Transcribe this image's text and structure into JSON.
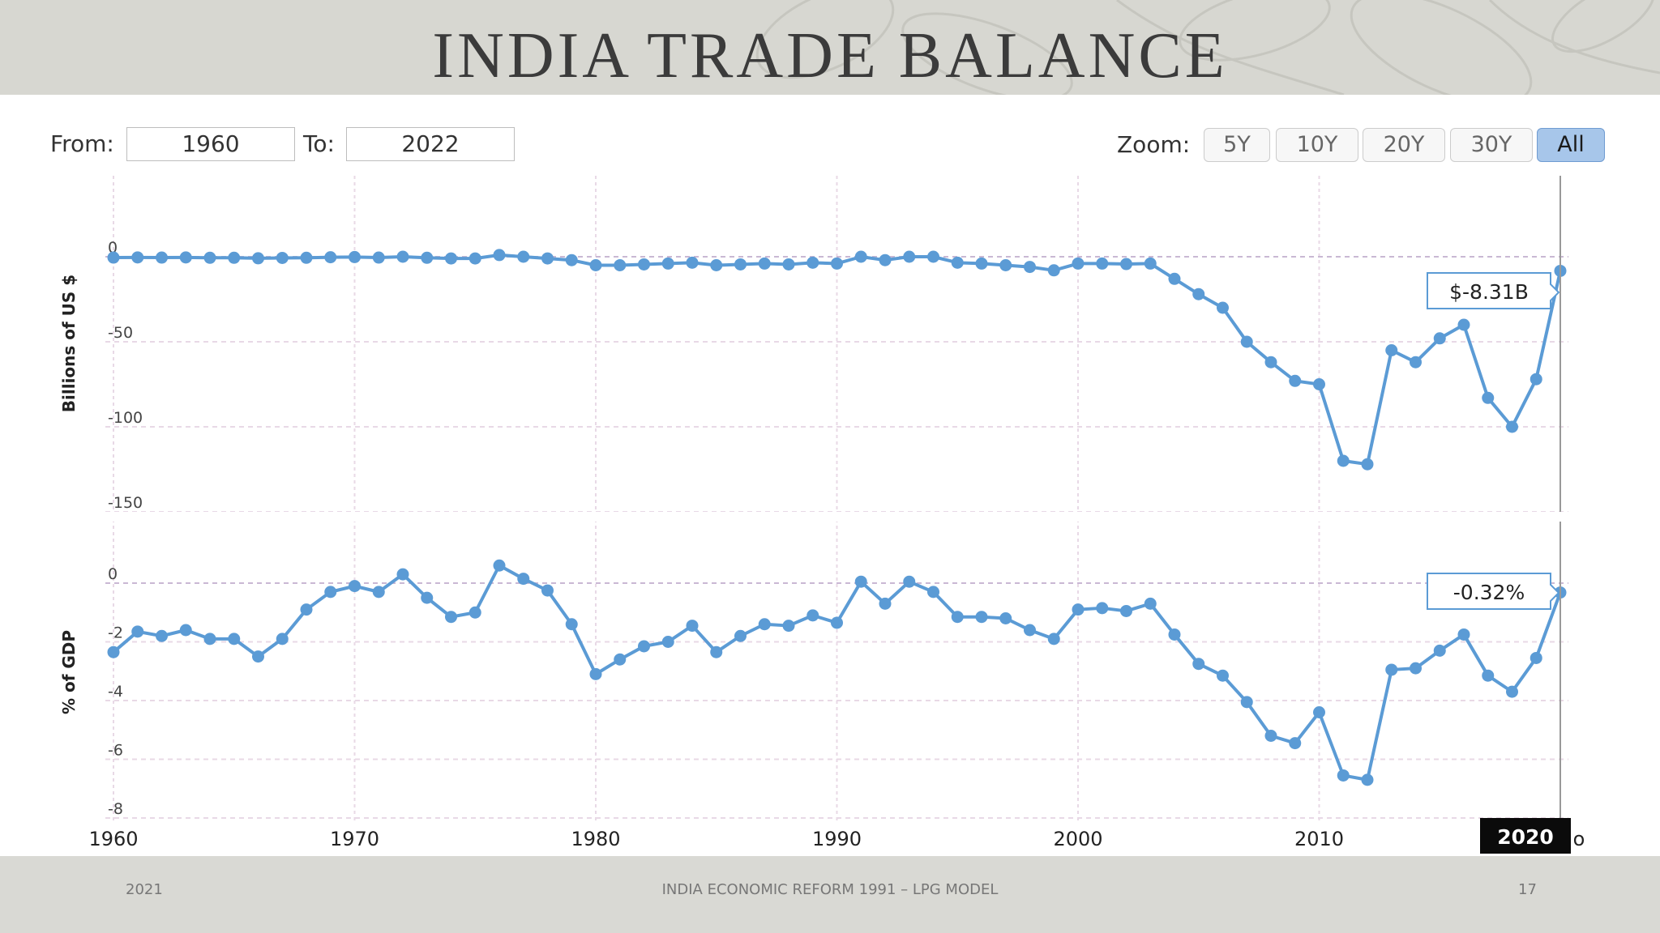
{
  "slide": {
    "title": "INDIA TRADE BALANCE",
    "footer_left": "2021",
    "footer_center": "INDIA ECONOMIC REFORM 1991 – LPG MODEL",
    "footer_right": "17"
  },
  "controls": {
    "from_label": "From:",
    "from_value": "1960",
    "to_label": "To:",
    "to_value": "2022",
    "zoom_label": "Zoom:",
    "zoom_buttons": [
      "5Y",
      "10Y",
      "20Y",
      "30Y",
      "All"
    ],
    "zoom_active": "All"
  },
  "colors": {
    "series": "#5b9bd5",
    "grid": "#e8d9e6",
    "zero_line": "#c9b8d4"
  },
  "chart_data": [
    {
      "type": "line",
      "ylabel": "Billions of US $",
      "ylim": [
        -150,
        0
      ],
      "yticks": [
        0,
        -50,
        -100,
        -150
      ],
      "x": [
        1960,
        1961,
        1962,
        1963,
        1964,
        1965,
        1966,
        1967,
        1968,
        1969,
        1970,
        1971,
        1972,
        1973,
        1974,
        1975,
        1976,
        1977,
        1978,
        1979,
        1980,
        1981,
        1982,
        1983,
        1984,
        1985,
        1986,
        1987,
        1988,
        1989,
        1990,
        1991,
        1992,
        1993,
        1994,
        1995,
        1996,
        1997,
        1998,
        1999,
        2000,
        2001,
        2002,
        2003,
        2004,
        2005,
        2006,
        2007,
        2008,
        2009,
        2010,
        2011,
        2012,
        2013,
        2014,
        2015,
        2016,
        2017,
        2018,
        2019,
        2020
      ],
      "values": [
        -0.5,
        -0.4,
        -0.5,
        -0.4,
        -0.6,
        -0.6,
        -0.9,
        -0.7,
        -0.6,
        -0.3,
        -0.2,
        -0.5,
        0,
        -0.6,
        -1,
        -1,
        1,
        0,
        -1,
        -2,
        -5,
        -5,
        -4.5,
        -4,
        -3.5,
        -5,
        -4.5,
        -4,
        -4.5,
        -3.5,
        -4,
        0,
        -2,
        0,
        0,
        -3.5,
        -4,
        -5,
        -6,
        -8,
        -4,
        -4,
        -4.3,
        -4,
        -13,
        -22,
        -30,
        -50,
        -62,
        -73,
        -75,
        -120,
        -122,
        -55,
        -62,
        -48,
        -40,
        -83,
        -100,
        -72,
        -8.31
      ],
      "tooltip": "$-8.31B"
    },
    {
      "type": "line",
      "ylabel": "% of GDP",
      "ylim": [
        -8,
        0
      ],
      "yticks": [
        0,
        -2,
        -4,
        -6,
        -8
      ],
      "x": [
        1960,
        1961,
        1962,
        1963,
        1964,
        1965,
        1966,
        1967,
        1968,
        1969,
        1970,
        1971,
        1972,
        1973,
        1974,
        1975,
        1976,
        1977,
        1978,
        1979,
        1980,
        1981,
        1982,
        1983,
        1984,
        1985,
        1986,
        1987,
        1988,
        1989,
        1990,
        1991,
        1992,
        1993,
        1994,
        1995,
        1996,
        1997,
        1998,
        1999,
        2000,
        2001,
        2002,
        2003,
        2004,
        2005,
        2006,
        2007,
        2008,
        2009,
        2010,
        2011,
        2012,
        2013,
        2014,
        2015,
        2016,
        2017,
        2018,
        2019,
        2020
      ],
      "values": [
        -2.35,
        -1.65,
        -1.8,
        -1.6,
        -1.9,
        -1.9,
        -2.5,
        -1.9,
        -0.9,
        -0.3,
        -0.1,
        -0.3,
        0.3,
        -0.5,
        -1.15,
        -1,
        0.6,
        0.15,
        -0.25,
        -1.4,
        -3.1,
        -2.6,
        -2.15,
        -2,
        -1.45,
        -2.35,
        -1.8,
        -1.4,
        -1.45,
        -1.1,
        -1.35,
        0.05,
        -0.7,
        0.05,
        -0.3,
        -1.15,
        -1.15,
        -1.2,
        -1.6,
        -1.9,
        -0.9,
        -0.85,
        -0.95,
        -0.7,
        -1.75,
        -2.75,
        -3.15,
        -4.05,
        -5.2,
        -5.45,
        -4.4,
        -6.55,
        -6.7,
        -2.95,
        -2.9,
        -2.3,
        -1.75,
        -3.15,
        -3.7,
        -2.55,
        -0.32
      ],
      "tooltip": "-0.32%"
    }
  ],
  "x_axis": {
    "ticks": [
      "1960",
      "1970",
      "1980",
      "1990",
      "2000",
      "2010"
    ],
    "highlight_label": "2020"
  }
}
